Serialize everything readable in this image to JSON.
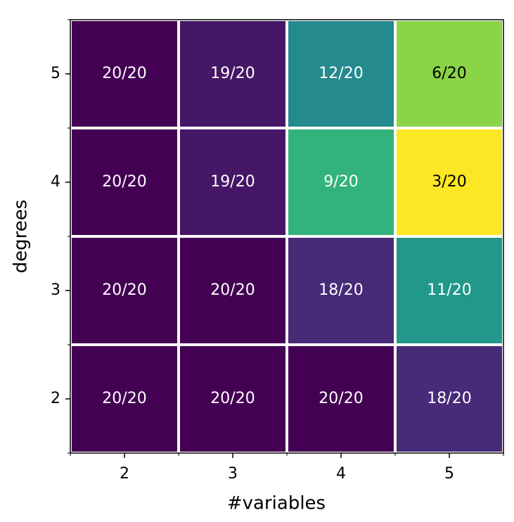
{
  "chart_data": {
    "type": "heatmap",
    "x_label": "#variables",
    "y_label": "degrees",
    "x": [
      2,
      3,
      4,
      5
    ],
    "y": [
      5,
      4,
      3,
      2
    ],
    "values": [
      [
        20,
        19,
        12,
        6
      ],
      [
        20,
        19,
        9,
        3
      ],
      [
        20,
        20,
        18,
        11
      ],
      [
        20,
        20,
        20,
        18
      ]
    ],
    "value_labels": [
      [
        "20/20",
        "19/20",
        "12/20",
        "6/20"
      ],
      [
        "20/20",
        "19/20",
        "9/20",
        "3/20"
      ],
      [
        "20/20",
        "20/20",
        "18/20",
        "11/20"
      ],
      [
        "20/20",
        "20/20",
        "20/20",
        "18/20"
      ]
    ],
    "colormap": "viridis_r"
  }
}
